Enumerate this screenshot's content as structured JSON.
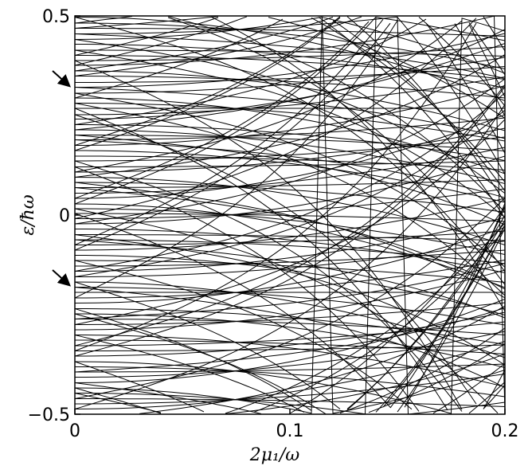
{
  "chart_data": {
    "type": "line",
    "xlabel": "2μ₁/ω",
    "ylabel": "ε/ħω",
    "xlim": [
      0,
      0.2
    ],
    "ylim": [
      -0.5,
      0.5
    ],
    "xticks": [
      {
        "value": 0,
        "label": "0"
      },
      {
        "value": 0.1,
        "label": "0.1"
      },
      {
        "value": 0.2,
        "label": "0.2"
      }
    ],
    "yticks": [
      {
        "value": -0.5,
        "label": "−0.5"
      },
      {
        "value": 0,
        "label": "0"
      },
      {
        "value": 0.5,
        "label": "0.5"
      }
    ],
    "grid": false,
    "legend": "none",
    "line_color": "#000000",
    "annotations": [
      {
        "type": "arrow",
        "target_y": 0.33
      },
      {
        "type": "arrow",
        "target_y": -0.17
      }
    ],
    "band_lines": {
      "description_for_render": "quasienergy levels folded into the first zone",
      "flat_levels": [
        0.497,
        0.482,
        0.469,
        0.455,
        0.441,
        0.429,
        0.414,
        0.401,
        0.388,
        0.376,
        0.362,
        0.349,
        0.333,
        0.321,
        0.306,
        0.294,
        0.281,
        0.268,
        0.252,
        0.241,
        0.227,
        0.214,
        0.201,
        0.189,
        0.175,
        0.162,
        0.148,
        0.136,
        0.121,
        0.108,
        0.095,
        0.082,
        0.069,
        0.055,
        0.042,
        0.028,
        0.016,
        0.004,
        -0.009,
        -0.022,
        -0.035,
        -0.049,
        -0.062,
        -0.075,
        -0.088,
        -0.101,
        -0.114,
        -0.128,
        -0.141,
        -0.155,
        -0.168,
        -0.181,
        -0.194,
        -0.208,
        -0.221,
        -0.235,
        -0.248,
        -0.261,
        -0.275,
        -0.288,
        -0.301,
        -0.314,
        -0.328,
        -0.341,
        -0.354,
        -0.368,
        -0.381,
        -0.394,
        -0.407,
        -0.421,
        -0.434,
        -0.447,
        -0.461,
        -0.474,
        -0.487
      ],
      "slopes": [
        -2.4,
        1.8,
        -1.2,
        0.9,
        -3.0,
        2.6,
        -0.7,
        1.3,
        -1.9,
        3.4,
        -2.2,
        0.5,
        2.1,
        -1.5,
        -0.4,
        1.1,
        -2.8,
        2.9,
        -0.9,
        1.6
      ]
    }
  }
}
